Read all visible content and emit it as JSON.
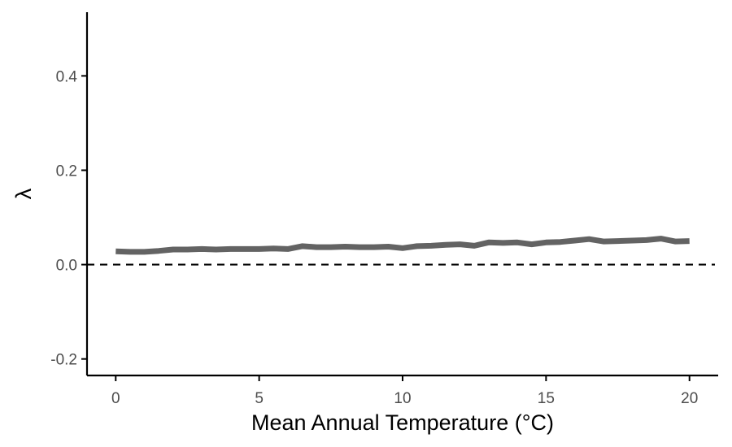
{
  "chart_data": {
    "type": "line",
    "title": "",
    "xlabel": "Mean Annual Temperature (°C)",
    "ylabel": "λ",
    "xlim": [
      -1,
      21
    ],
    "ylim": [
      -0.235,
      0.535
    ],
    "x_ticks": [
      0,
      5,
      10,
      15,
      20
    ],
    "x_tick_labels": [
      "0",
      "5",
      "10",
      "15",
      "20"
    ],
    "y_ticks": [
      -0.2,
      0.0,
      0.2,
      0.4
    ],
    "y_tick_labels": [
      "-0.2",
      "0.0",
      "0.2",
      "0.4"
    ],
    "grid": false,
    "reference_line": {
      "y": 0,
      "style": "dashed",
      "color": "#000000"
    },
    "series": [
      {
        "color": "#636363",
        "x": [
          0,
          0.5,
          1,
          1.5,
          2,
          2.5,
          3,
          3.5,
          4,
          4.5,
          5,
          5.5,
          6,
          6.5,
          7,
          7.5,
          8,
          8.5,
          9,
          9.5,
          10,
          10.5,
          11,
          11.5,
          12,
          12.5,
          13,
          13.5,
          14,
          14.5,
          15,
          15.5,
          16,
          16.5,
          17,
          17.5,
          18,
          18.5,
          19,
          19.5,
          20
        ],
        "y": [
          0.028,
          0.027,
          0.027,
          0.029,
          0.032,
          0.032,
          0.033,
          0.032,
          0.033,
          0.033,
          0.033,
          0.034,
          0.033,
          0.039,
          0.037,
          0.037,
          0.038,
          0.037,
          0.037,
          0.038,
          0.035,
          0.039,
          0.04,
          0.042,
          0.043,
          0.04,
          0.047,
          0.046,
          0.047,
          0.043,
          0.047,
          0.048,
          0.051,
          0.054,
          0.049,
          0.05,
          0.051,
          0.052,
          0.055,
          0.049,
          0.05
        ]
      }
    ]
  }
}
